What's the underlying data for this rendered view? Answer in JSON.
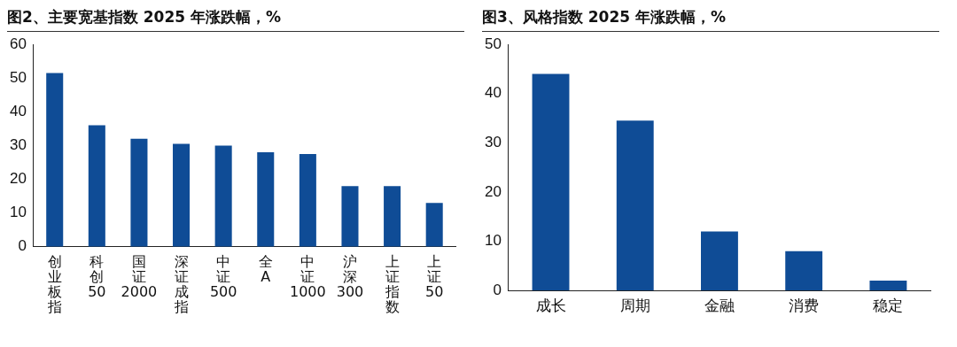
{
  "chart_data": [
    {
      "type": "bar",
      "title": "图2、主要宽基指数 2025 年涨跌幅，%",
      "categories": [
        "创业板指",
        "科创50",
        "国证2000",
        "深证成指",
        "中证500",
        "全A",
        "中证1000",
        "沪深300",
        "上证指数",
        "上证50"
      ],
      "values": [
        51.5,
        36,
        32,
        30.5,
        30,
        28,
        27.5,
        18,
        18,
        13
      ],
      "color": "#0f4c96",
      "ylim": [
        0,
        60
      ],
      "yticks": [
        0,
        10,
        20,
        30,
        40,
        50,
        60
      ]
    },
    {
      "type": "bar",
      "title": "图3、风格指数 2025 年涨跌幅，%",
      "categories": [
        "成长",
        "周期",
        "金融",
        "消费",
        "稳定"
      ],
      "values": [
        44,
        34.5,
        12,
        8,
        2
      ],
      "color": "#0f4c96",
      "ylim": [
        0,
        50
      ],
      "yticks": [
        0,
        10,
        20,
        30,
        40,
        50
      ]
    }
  ]
}
